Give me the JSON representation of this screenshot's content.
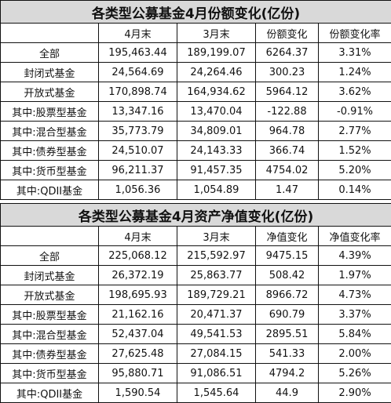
{
  "tables": [
    {
      "title": "各类型公募基金4月份额变化(亿份)",
      "headers": [
        "",
        "4月末",
        "3月末",
        "份额变化",
        "份额变化率"
      ],
      "rows": [
        [
          "全部",
          "195,463.44",
          "189,199.07",
          "6264.37",
          "3.31%"
        ],
        [
          "封闭式基金",
          "24,564.69",
          "24,264.46",
          "300.23",
          "1.24%"
        ],
        [
          "开放式基金",
          "170,898.74",
          "164,934.62",
          "5964.12",
          "3.62%"
        ],
        [
          "其中:股票型基金",
          "13,347.16",
          "13,470.04",
          "-122.88",
          "-0.91%"
        ],
        [
          "其中:混合型基金",
          "35,773.79",
          "34,809.01",
          "964.78",
          "2.77%"
        ],
        [
          "其中:债券型基金",
          "24,510.07",
          "24,143.33",
          "366.74",
          "1.52%"
        ],
        [
          "其中:货币型基金",
          "96,211.37",
          "91,457.35",
          "4754.02",
          "5.20%"
        ],
        [
          "其中:QDII基金",
          "1,056.36",
          "1,054.89",
          "1.47",
          "0.14%"
        ]
      ]
    },
    {
      "title": "各类型公募基金4月资产净值变化(亿份)",
      "headers": [
        "",
        "4月末",
        "3月末",
        "净值变化",
        "净值变化率"
      ],
      "rows": [
        [
          "全部",
          "225,068.12",
          "215,592.97",
          "9475.15",
          "4.39%"
        ],
        [
          "封闭式基金",
          "26,372.19",
          "25,863.77",
          "508.42",
          "1.97%"
        ],
        [
          "开放式基金",
          "198,695.93",
          "189,729.21",
          "8966.72",
          "4.73%"
        ],
        [
          "其中:股票型基金",
          "21,162.16",
          "20,471.37",
          "690.79",
          "3.37%"
        ],
        [
          "其中:混合型基金",
          "52,437.04",
          "49,541.53",
          "2895.51",
          "5.84%"
        ],
        [
          "其中:债券型基金",
          "27,625.48",
          "27,084.15",
          "541.33",
          "2.00%"
        ],
        [
          "其中:货币型基金",
          "95,880.71",
          "91,086.51",
          "4794.2",
          "5.26%"
        ],
        [
          "其中:QDII基金",
          "1,590.54",
          "1,545.64",
          "44.9",
          "2.90%"
        ]
      ]
    }
  ]
}
